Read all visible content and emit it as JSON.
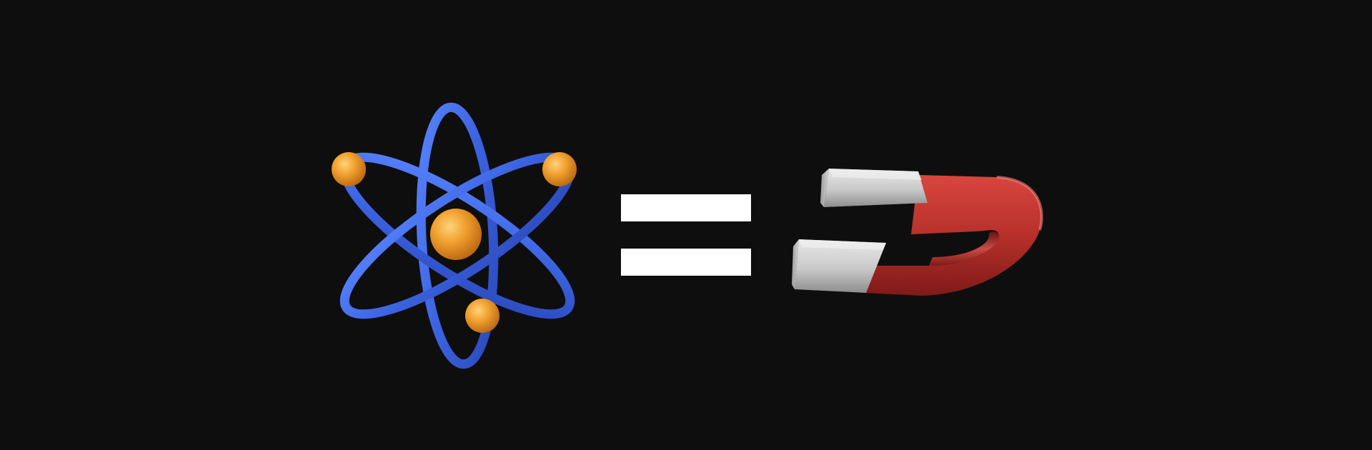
{
  "scene": {
    "background_color": "#0f0e0e",
    "left_icon": "atom-icon",
    "operator_icon": "equals-sign-icon",
    "right_icon": "horseshoe-magnet-icon"
  },
  "colors": {
    "atom_orbit": "#3b63e0",
    "atom_nucleus": "#f0a02e",
    "atom_electron": "#f0a02e",
    "equals_bars": "#ffffff",
    "magnet_red": "#c8322f",
    "magnet_steel": "#cfcfcf"
  }
}
